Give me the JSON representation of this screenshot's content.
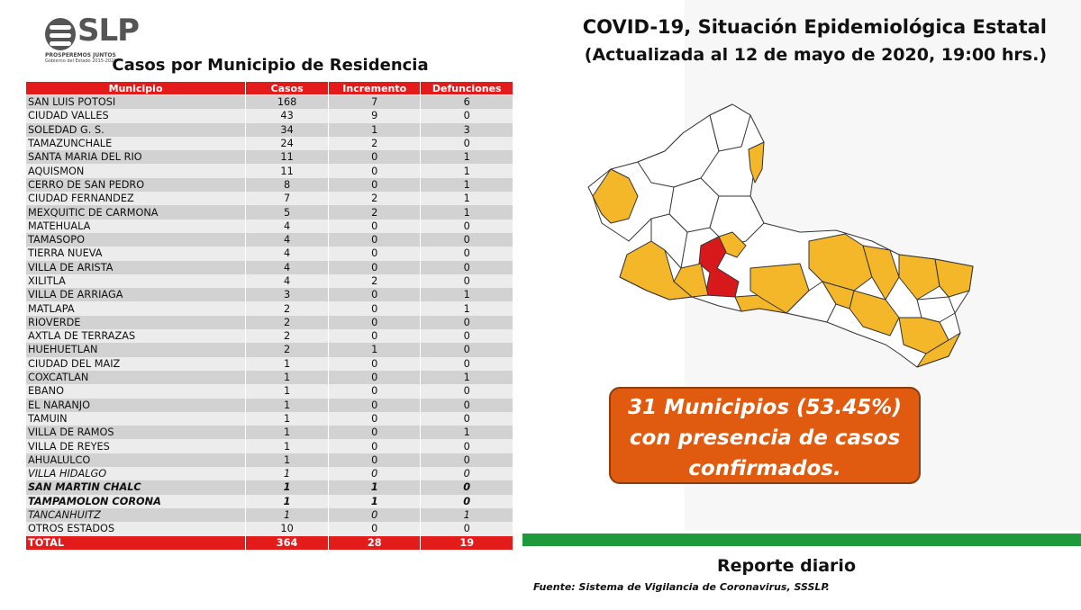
{
  "logo": {
    "wordmark": "SLP",
    "tagline": "PROSPEREMOS JUNTOS",
    "subtag": "Gobierno del Estado 2015-2021"
  },
  "header": {
    "title": "COVID-19, Situación Epidemiológica Estatal",
    "subtitle": "(Actualizada al 12 de mayo de 2020, 19:00 hrs.)"
  },
  "table": {
    "title": "Casos por Municipio de Residencia",
    "columns": [
      "Municipio",
      "Casos",
      "Incremento",
      "Defunciones"
    ],
    "rows": [
      {
        "municipio": "SAN LUIS POTOSI",
        "casos": "168",
        "incremento": "7",
        "defunciones": "6",
        "style": ""
      },
      {
        "municipio": "CIUDAD VALLES",
        "casos": "43",
        "incremento": "9",
        "defunciones": "0",
        "style": ""
      },
      {
        "municipio": "SOLEDAD G. S.",
        "casos": "34",
        "incremento": "1",
        "defunciones": "3",
        "style": ""
      },
      {
        "municipio": "TAMAZUNCHALE",
        "casos": "24",
        "incremento": "2",
        "defunciones": "0",
        "style": ""
      },
      {
        "municipio": "SANTA MARIA DEL RIO",
        "casos": "11",
        "incremento": "0",
        "defunciones": "1",
        "style": ""
      },
      {
        "municipio": "AQUISMON",
        "casos": "11",
        "incremento": "0",
        "defunciones": "1",
        "style": ""
      },
      {
        "municipio": "CERRO DE SAN PEDRO",
        "casos": "8",
        "incremento": "0",
        "defunciones": "1",
        "style": ""
      },
      {
        "municipio": "CIUDAD FERNANDEZ",
        "casos": "7",
        "incremento": "2",
        "defunciones": "1",
        "style": ""
      },
      {
        "municipio": "MEXQUITIC DE CARMONA",
        "casos": "5",
        "incremento": "2",
        "defunciones": "1",
        "style": ""
      },
      {
        "municipio": "MATEHUALA",
        "casos": "4",
        "incremento": "0",
        "defunciones": "0",
        "style": ""
      },
      {
        "municipio": "TAMASOPO",
        "casos": "4",
        "incremento": "0",
        "defunciones": "0",
        "style": ""
      },
      {
        "municipio": "TIERRA NUEVA",
        "casos": "4",
        "incremento": "0",
        "defunciones": "0",
        "style": ""
      },
      {
        "municipio": "VILLA DE ARISTA",
        "casos": "4",
        "incremento": "0",
        "defunciones": "0",
        "style": ""
      },
      {
        "municipio": "XILITLA",
        "casos": "4",
        "incremento": "2",
        "defunciones": "0",
        "style": ""
      },
      {
        "municipio": "VILLA DE ARRIAGA",
        "casos": "3",
        "incremento": "0",
        "defunciones": "1",
        "style": ""
      },
      {
        "municipio": "MATLAPA",
        "casos": "2",
        "incremento": "0",
        "defunciones": "1",
        "style": ""
      },
      {
        "municipio": "RIOVERDE",
        "casos": "2",
        "incremento": "0",
        "defunciones": "0",
        "style": ""
      },
      {
        "municipio": "AXTLA DE TERRAZAS",
        "casos": "2",
        "incremento": "0",
        "defunciones": "0",
        "style": ""
      },
      {
        "municipio": "HUEHUETLAN",
        "casos": "2",
        "incremento": "1",
        "defunciones": "0",
        "style": ""
      },
      {
        "municipio": "CIUDAD DEL MAIZ",
        "casos": "1",
        "incremento": "0",
        "defunciones": "0",
        "style": ""
      },
      {
        "municipio": "COXCATLAN",
        "casos": "1",
        "incremento": "0",
        "defunciones": "1",
        "style": ""
      },
      {
        "municipio": "EBANO",
        "casos": "1",
        "incremento": "0",
        "defunciones": "0",
        "style": ""
      },
      {
        "municipio": "EL NARANJO",
        "casos": "1",
        "incremento": "0",
        "defunciones": "0",
        "style": ""
      },
      {
        "municipio": "TAMUIN",
        "casos": "1",
        "incremento": "0",
        "defunciones": "0",
        "style": ""
      },
      {
        "municipio": "VILLA DE RAMOS",
        "casos": "1",
        "incremento": "0",
        "defunciones": "1",
        "style": ""
      },
      {
        "municipio": "VILLA DE REYES",
        "casos": "1",
        "incremento": "0",
        "defunciones": "0",
        "style": ""
      },
      {
        "municipio": "AHUALULCO",
        "casos": "1",
        "incremento": "0",
        "defunciones": "0",
        "style": ""
      },
      {
        "municipio": "VILLA HIDALGO",
        "casos": "1",
        "incremento": "0",
        "defunciones": "0",
        "style": "italic"
      },
      {
        "municipio": "SAN MARTIN CHALC",
        "casos": "1",
        "incremento": "1",
        "defunciones": "0",
        "style": "bold italic"
      },
      {
        "municipio": "TAMPAMOLON CORONA",
        "casos": "1",
        "incremento": "1",
        "defunciones": "0",
        "style": "bold italic"
      },
      {
        "municipio": "TANCANHUITZ",
        "casos": "1",
        "incremento": "0",
        "defunciones": "1",
        "style": "italic"
      },
      {
        "municipio": "OTROS ESTADOS",
        "casos": "10",
        "incremento": "0",
        "defunciones": "0",
        "style": ""
      }
    ],
    "total": {
      "municipio": "TOTAL",
      "casos": "364",
      "incremento": "28",
      "defunciones": "19"
    }
  },
  "callout": {
    "line1": "31 Municipios (53.45%)",
    "line2": "con presencia de casos",
    "line3": "confirmados."
  },
  "footer": {
    "report": "Reporte diario",
    "source": "Fuente: Sistema de Vigilancia de Coronavirus, SSSLP."
  },
  "colors": {
    "header_red": "#e41b1b",
    "map_yellow": "#f5b72a",
    "map_red": "#d7191c",
    "callout_orange": "#e05a0f",
    "bar_green": "#1f9a3a"
  }
}
